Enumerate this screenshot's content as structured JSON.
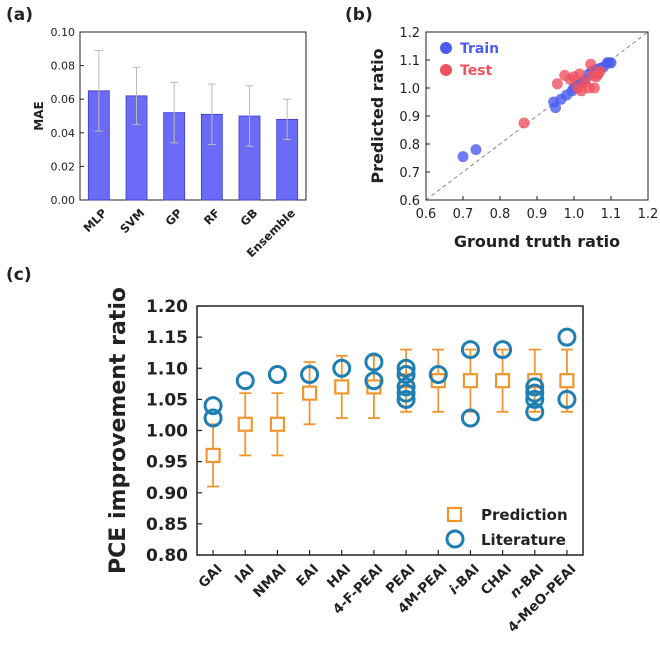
{
  "panels": {
    "a": {
      "label": "(a)"
    },
    "b": {
      "label": "(b)"
    },
    "c": {
      "label": "(c)"
    }
  },
  "colors": {
    "bar_fill": "#6b6bf7",
    "bar_stroke": "#3a3ad0",
    "error_bar_a": "#bbbbbb",
    "train": "#4a5df0",
    "test": "#f0525f",
    "prediction": "#f0962f",
    "literature": "#1f7fb3",
    "diagonal": "#888888",
    "axis": "#222222"
  },
  "chart_data": [
    {
      "id": "a",
      "type": "bar",
      "title": "",
      "xlabel": "",
      "ylabel": "MAE",
      "categories": [
        "MLP",
        "SVM",
        "GP",
        "RF",
        "GB",
        "Ensemble"
      ],
      "values": [
        0.065,
        0.062,
        0.052,
        0.051,
        0.05,
        0.048
      ],
      "error": [
        0.024,
        0.017,
        0.018,
        0.018,
        0.018,
        0.012
      ],
      "ylim": [
        0.0,
        0.1
      ],
      "yticks": [
        "0.00",
        "0.02",
        "0.04",
        "0.06",
        "0.08",
        "0.10"
      ],
      "grid": false
    },
    {
      "id": "b",
      "type": "scatter",
      "title": "",
      "xlabel": "Ground truth ratio",
      "ylabel": "Predicted ratio",
      "xlim": [
        0.6,
        1.2
      ],
      "ylim": [
        0.6,
        1.2
      ],
      "xticks": [
        "0.6",
        "0.7",
        "0.8",
        "0.9",
        "1.0",
        "1.1",
        "1.2"
      ],
      "yticks": [
        "0.6",
        "0.7",
        "0.8",
        "0.9",
        "1.0",
        "1.1",
        "1.2"
      ],
      "diagonal": "dashed y=x",
      "legend": "top-left",
      "grid": false,
      "series": [
        {
          "name": "Train",
          "points": [
            [
              0.7,
              0.755
            ],
            [
              0.735,
              0.78
            ],
            [
              0.945,
              0.95
            ],
            [
              0.95,
              0.93
            ],
            [
              0.965,
              0.96
            ],
            [
              0.98,
              0.975
            ],
            [
              0.995,
              0.99
            ],
            [
              1.0,
              1.0
            ],
            [
              1.01,
              1.01
            ],
            [
              1.02,
              1.02
            ],
            [
              1.03,
              1.03
            ],
            [
              1.04,
              1.05
            ],
            [
              1.05,
              1.06
            ],
            [
              1.06,
              1.065
            ],
            [
              1.065,
              1.05
            ],
            [
              1.07,
              1.07
            ],
            [
              1.08,
              1.075
            ],
            [
              1.09,
              1.09
            ],
            [
              1.095,
              1.09
            ],
            [
              1.1,
              1.09
            ]
          ]
        },
        {
          "name": "Test",
          "points": [
            [
              0.865,
              0.875
            ],
            [
              0.955,
              1.015
            ],
            [
              0.975,
              1.045
            ],
            [
              0.99,
              1.03
            ],
            [
              1.0,
              1.04
            ],
            [
              1.01,
              1.0
            ],
            [
              1.015,
              1.05
            ],
            [
              1.02,
              0.99
            ],
            [
              1.03,
              1.02
            ],
            [
              1.04,
              1.0
            ],
            [
              1.045,
              1.085
            ],
            [
              1.05,
              1.045
            ],
            [
              1.055,
              1.0
            ],
            [
              1.06,
              1.04
            ],
            [
              1.065,
              1.05
            ],
            [
              1.07,
              1.06
            ]
          ]
        }
      ]
    },
    {
      "id": "c",
      "type": "scatter",
      "title": "",
      "xlabel": "",
      "ylabel": "PCE improvement ratio",
      "categories": [
        "GAI",
        "IAI",
        "NMAI",
        "EAI",
        "HAI",
        "4-F-PEAI",
        "PEAI",
        "4M-PEAI",
        "i-BAI",
        "CHAI",
        "n-BAI",
        "4-MeO-PEAI"
      ],
      "ylim": [
        0.8,
        1.2
      ],
      "yticks": [
        "0.80",
        "0.85",
        "0.90",
        "0.95",
        "1.00",
        "1.05",
        "1.10",
        "1.15",
        "1.20"
      ],
      "legend": "bottom-right",
      "grid": false,
      "series": [
        {
          "name": "Prediction",
          "values": [
            0.96,
            1.01,
            1.01,
            1.06,
            1.07,
            1.07,
            1.08,
            1.08,
            1.08,
            1.08,
            1.08,
            1.08
          ],
          "error_low": [
            0.91,
            0.96,
            0.96,
            1.01,
            1.02,
            1.02,
            1.03,
            1.03,
            1.03,
            1.03,
            1.03,
            1.03
          ],
          "error_high": [
            1.01,
            1.06,
            1.06,
            1.11,
            1.12,
            1.12,
            1.13,
            1.13,
            1.13,
            1.13,
            1.13,
            1.13
          ]
        },
        {
          "name": "Literature",
          "values": [
            [
              1.04,
              1.02
            ],
            [
              1.08
            ],
            [
              1.09
            ],
            [
              1.09
            ],
            [
              1.1
            ],
            [
              1.11,
              1.08
            ],
            [
              1.1,
              1.09,
              1.07,
              1.06,
              1.05
            ],
            [
              1.09
            ],
            [
              1.13,
              1.02
            ],
            [
              1.13
            ],
            [
              1.07,
              1.06,
              1.05,
              1.03
            ],
            [
              1.15,
              1.05
            ]
          ]
        }
      ]
    }
  ]
}
